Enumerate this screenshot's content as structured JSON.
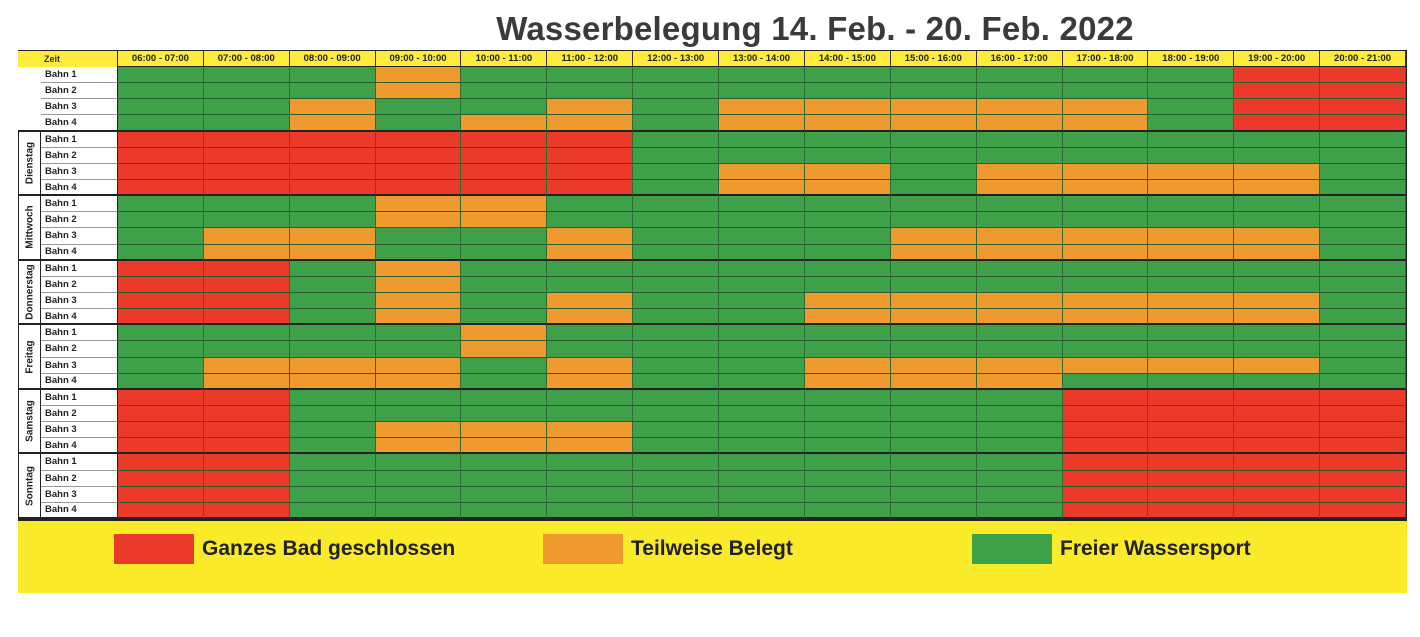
{
  "chart_data": {
    "type": "heatmap",
    "title": "Wasserbelegung 14. Feb. - 20. Feb. 2022",
    "corner_label": "Zeit",
    "time_slots": [
      "06:00 - 07:00",
      "07:00 - 08:00",
      "08:00 - 09:00",
      "09:00 - 10:00",
      "10:00 - 11:00",
      "11:00 - 12:00",
      "12:00 - 13:00",
      "13:00 - 14:00",
      "14:00 - 15:00",
      "15:00 - 16:00",
      "16:00 - 17:00",
      "17:00 - 18:00",
      "18:00 - 19:00",
      "19:00 - 20:00",
      "20:00 - 21:00"
    ],
    "lanes": [
      "Bahn 1",
      "Bahn 2",
      "Bahn 3",
      "Bahn 4"
    ],
    "days": [
      {
        "label": "",
        "rows": [
          "GGGOGGGGGGGGGRR",
          "GGGOGGGGGGGGGRR",
          "GGOGGOGOOOOOGRR",
          "GGOGOOGOOOOOGRR"
        ]
      },
      {
        "label": "Dienstag",
        "rows": [
          "RRRRRRGGGGGGGGG",
          "RRRRRRGGGGGGGGG",
          "RRRRRRGOOGOOOOG",
          "RRRRRRGOOGOOOOG"
        ]
      },
      {
        "label": "Mittwoch",
        "rows": [
          "GGGOOGGGGGGGGGG",
          "GGGOOGGGGGGGGGG",
          "GOOGGOGGGOOOOOG",
          "GOOGGOGGGOOOOOG"
        ]
      },
      {
        "label": "Donnerstag",
        "rows": [
          "RRGOGGGGGGGGGGG",
          "RRGOGGGGGGGGGGG",
          "RRGOGOGGOOOOOOG",
          "RRGOGOGGOOOOOOG"
        ]
      },
      {
        "label": "Freitag",
        "rows": [
          "GGGGOGGGGGGGGGG",
          "GGGGOGGGGGGGGGG",
          "GOOOGOGGOOOOOOG",
          "GOOOGOGGOOOGGGG"
        ]
      },
      {
        "label": "Samstag",
        "rows": [
          "RRGGGGGGGGGRRRR",
          "RRGGGGGGGGGRRRR",
          "RRGOOOGGGGGRRRR",
          "RRGOOOGGGGGRRRR"
        ]
      },
      {
        "label": "Sonntag",
        "rows": [
          "RRGGGGGGGGGRRRR",
          "RRGGGGGGGGGRRRR",
          "RRGGGGGGGGGRRRR",
          "RRGGGGGGGGGRRRR"
        ]
      }
    ],
    "legend": [
      {
        "key": "R",
        "label": "Ganzes Bad geschlossen",
        "color": "#ea3a2a"
      },
      {
        "key": "O",
        "label": "Teilweise Belegt",
        "color": "#ef9a2e"
      },
      {
        "key": "G",
        "label": "Freier Wassersport",
        "color": "#3fa04a"
      }
    ]
  }
}
